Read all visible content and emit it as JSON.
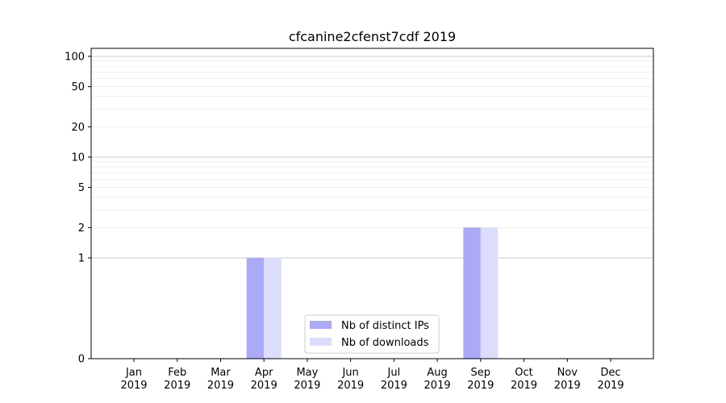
{
  "chart_data": {
    "type": "bar",
    "title": "cfcanine2cfenst7cdf 2019",
    "xlabel": "",
    "ylabel": "",
    "y_scale": "symlog",
    "ylim": [
      0,
      120
    ],
    "y_ticks": [
      0,
      1,
      2,
      5,
      10,
      20,
      50,
      100
    ],
    "y_tick_labels": [
      "0",
      "1",
      "2",
      "5",
      "10",
      "20",
      "50",
      "100"
    ],
    "grid": "major and minor horizontal",
    "categories": [
      [
        "Jan",
        "2019"
      ],
      [
        "Feb",
        "2019"
      ],
      [
        "Mar",
        "2019"
      ],
      [
        "Apr",
        "2019"
      ],
      [
        "May",
        "2019"
      ],
      [
        "Jun",
        "2019"
      ],
      [
        "Jul",
        "2019"
      ],
      [
        "Aug",
        "2019"
      ],
      [
        "Sep",
        "2019"
      ],
      [
        "Oct",
        "2019"
      ],
      [
        "Nov",
        "2019"
      ],
      [
        "Dec",
        "2019"
      ]
    ],
    "series": [
      {
        "name": "Nb of distinct IPs",
        "values": [
          0,
          0,
          0,
          1,
          0,
          0,
          0,
          0,
          2,
          0,
          0,
          0
        ],
        "color": "#aaaaf9"
      },
      {
        "name": "Nb of downloads",
        "values": [
          0,
          0,
          0,
          1,
          0,
          0,
          0,
          0,
          2,
          0,
          0,
          0
        ],
        "color": "#dcdcfb"
      }
    ],
    "legend_position": "lower center"
  }
}
